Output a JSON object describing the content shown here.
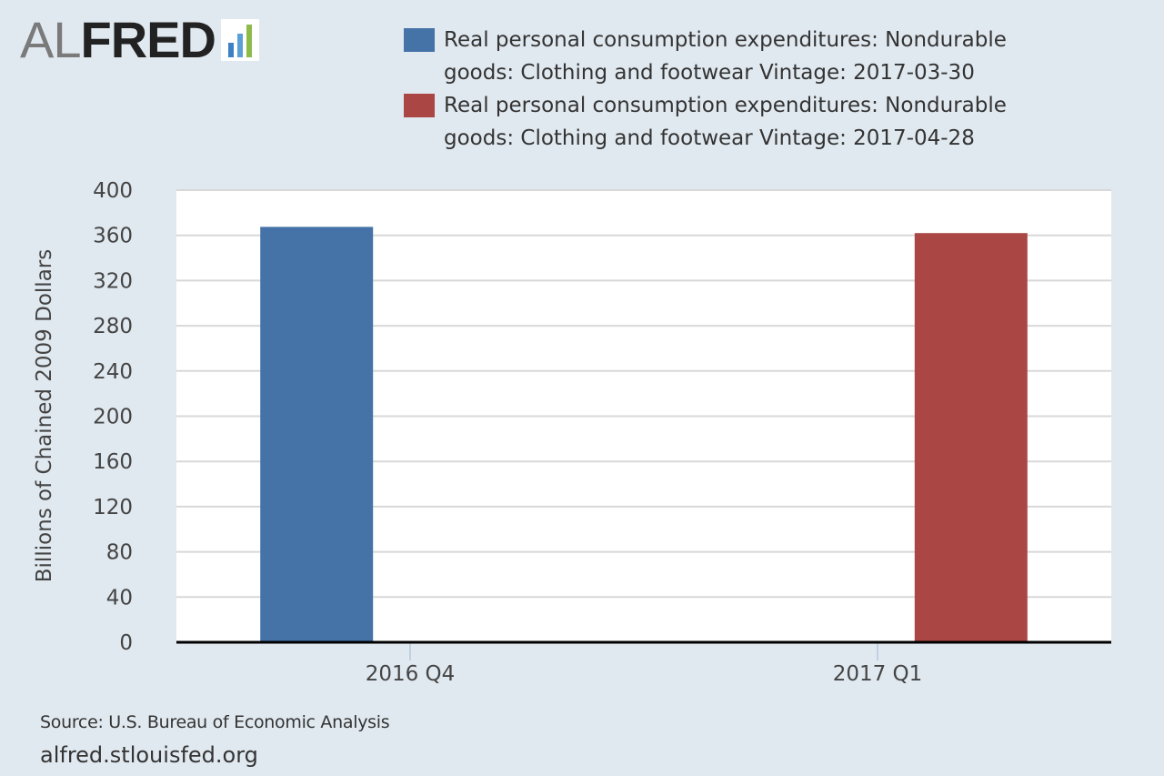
{
  "logo": {
    "al": "AL",
    "fred": "FRED",
    "brand_colors": [
      "#3d80c4",
      "#5aa0d6",
      "#8dbb4a"
    ]
  },
  "legend": {
    "items": [
      {
        "label": "Real personal consumption expenditures: Nondurable goods: Clothing and footwear Vintage: 2017-03-30",
        "color": "#4572a7"
      },
      {
        "label": "Real personal consumption expenditures: Nondurable goods: Clothing and footwear Vintage: 2017-04-28",
        "color": "#aa4643"
      }
    ]
  },
  "chart_data": {
    "type": "bar",
    "categories": [
      "2016 Q4",
      "2017 Q1"
    ],
    "series": [
      {
        "name": "Real personal consumption expenditures: Nondurable goods: Clothing and footwear Vintage: 2017-03-30",
        "color": "#4572a7",
        "values": [
          367.5,
          null
        ]
      },
      {
        "name": "Real personal consumption expenditures: Nondurable goods: Clothing and footwear Vintage: 2017-04-28",
        "color": "#aa4643",
        "values": [
          null,
          362.0
        ]
      }
    ],
    "ylabel": "Billions of Chained 2009 Dollars",
    "xlabel": "",
    "ylim": [
      0,
      400
    ],
    "yticks": [
      0,
      40,
      80,
      120,
      160,
      200,
      240,
      280,
      320,
      360,
      400
    ],
    "grid": true,
    "legend_position": "top"
  },
  "footer": {
    "source": "Source: U.S. Bureau of Economic Analysis",
    "site": "alfred.stlouisfed.org"
  }
}
